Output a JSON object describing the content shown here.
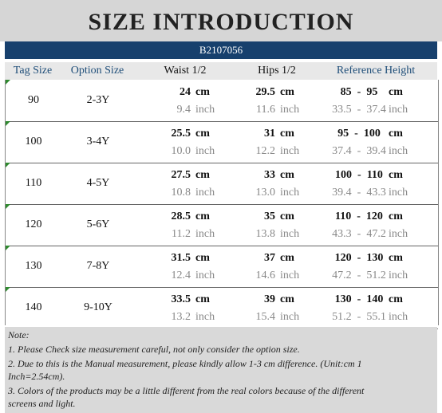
{
  "title": "SIZE  INTRODUCTION",
  "product_code": "B2107056",
  "headers": {
    "tag_size": "Tag Size",
    "option_size": "Option Size",
    "waist": "Waist 1/2",
    "hips": "Hips 1/2",
    "reference_height": "Reference Height"
  },
  "units": {
    "cm": "cm",
    "inch": "inch"
  },
  "rows": [
    {
      "tag": "90",
      "option": "2-3Y",
      "waist_cm": "24",
      "waist_in": "9.4",
      "hips_cm": "29.5",
      "hips_in": "11.6",
      "height_cm": "85  -  95",
      "height_in": "33.5  -  37.4"
    },
    {
      "tag": "100",
      "option": "3-4Y",
      "waist_cm": "25.5",
      "waist_in": "10.0",
      "hips_cm": "31",
      "hips_in": "12.2",
      "height_cm": "95  -  100",
      "height_in": "37.4  -  39.4"
    },
    {
      "tag": "110",
      "option": "4-5Y",
      "waist_cm": "27.5",
      "waist_in": "10.8",
      "hips_cm": "33",
      "hips_in": "13.0",
      "height_cm": "100  -  110",
      "height_in": "39.4  -  43.3"
    },
    {
      "tag": "120",
      "option": "5-6Y",
      "waist_cm": "28.5",
      "waist_in": "11.2",
      "hips_cm": "35",
      "hips_in": "13.8",
      "height_cm": "110  -  120",
      "height_in": "43.3  -  47.2"
    },
    {
      "tag": "130",
      "option": "7-8Y",
      "waist_cm": "31.5",
      "waist_in": "12.4",
      "hips_cm": "37",
      "hips_in": "14.6",
      "height_cm": "120  -  130",
      "height_in": "47.2  -  51.2"
    },
    {
      "tag": "140",
      "option": "9-10Y",
      "waist_cm": "33.5",
      "waist_in": "13.2",
      "hips_cm": "39",
      "hips_in": "15.4",
      "height_cm": "130  -  140",
      "height_in": "51.2  -  55.1"
    }
  ],
  "notes": {
    "label": "Note:",
    "line1": "1. Please Check size measurement careful, not only consider the option size.",
    "line2": "2. Due to this is the Manual measurement, please kindly allow 1-3 cm difference.  (Unit:cm  1",
    "line3": "Inch=2.54cm).",
    "line4": "3. Colors of the products may be a little different from the real colors because of the different",
    "line5": "screens and light."
  },
  "colors": {
    "title_bg": "#d6d6d6",
    "code_bar": "#17406d",
    "header_text": "#1f4e79",
    "inch_text": "#888888",
    "notes_bg": "#d9d9d9"
  }
}
